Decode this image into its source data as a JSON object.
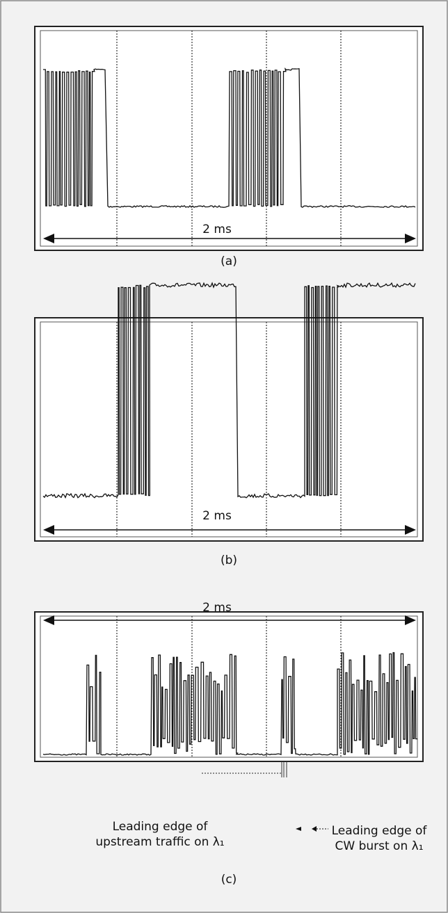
{
  "panels": [
    {
      "span": "2 ms",
      "label": "(a)"
    },
    {
      "span": "2 ms",
      "label": "(b)"
    },
    {
      "span": "2 ms",
      "label": "(c)"
    }
  ],
  "annotations": {
    "upstream": [
      "Leading edge of",
      "upstream traffic on λ₁"
    ],
    "cw": [
      "Leading edge of",
      "CW burst on λ₁"
    ]
  }
}
